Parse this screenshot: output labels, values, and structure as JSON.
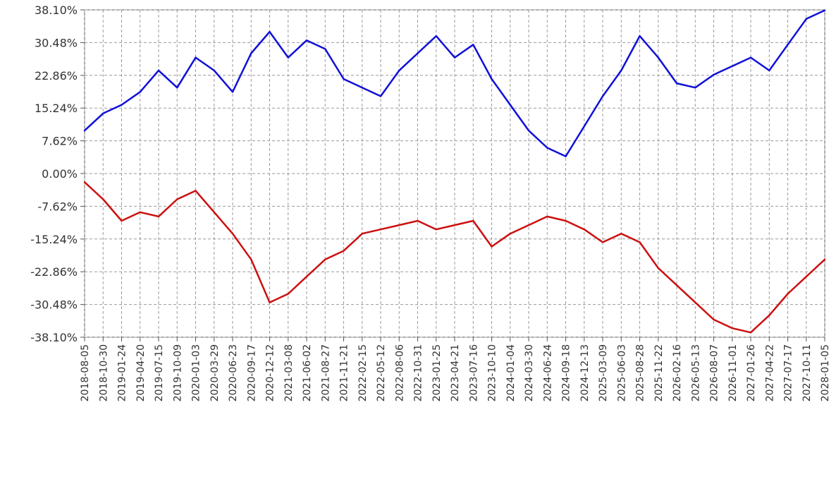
{
  "chart_data": {
    "type": "line",
    "title": "",
    "xlabel": "",
    "ylabel": "",
    "grid": true,
    "ylim": [
      -38.1,
      38.1
    ],
    "y_ticks": [
      "38.10%",
      "30.48%",
      "22.86%",
      "15.24%",
      "7.62%",
      "0.00%",
      "-7.62%",
      "-15.24%",
      "-22.86%",
      "-30.48%",
      "-38.10%"
    ],
    "y_tick_values": [
      38.1,
      30.48,
      22.86,
      15.24,
      7.62,
      0.0,
      -7.62,
      -15.24,
      -22.86,
      -30.48,
      -38.1
    ],
    "x_ticks": [
      "2018-08-05",
      "2018-10-30",
      "2019-01-24",
      "2019-04-20",
      "2019-07-15",
      "2019-10-09",
      "2020-01-03",
      "2020-03-29",
      "2020-06-23",
      "2020-09-17",
      "2020-12-12",
      "2021-03-08",
      "2021-06-02",
      "2021-08-27",
      "2021-11-21",
      "2022-02-15",
      "2022-05-12",
      "2022-08-06",
      "2022-10-31",
      "2023-01-25",
      "2023-04-21",
      "2023-07-16",
      "2023-10-10",
      "2024-01-04",
      "2024-03-30",
      "2024-06-24",
      "2024-09-18",
      "2024-12-13",
      "2025-03-09",
      "2025-06-03",
      "2025-08-28",
      "2025-11-22",
      "2026-02-16",
      "2026-05-13",
      "2026-08-07",
      "2026-11-01",
      "2027-01-26",
      "2027-04-22",
      "2027-07-17",
      "2027-10-11",
      "2028-01-05"
    ],
    "series": [
      {
        "color": "#1010d8",
        "x": [
          0,
          3,
          6,
          9,
          12,
          15,
          18,
          21,
          24,
          27,
          30,
          33,
          36,
          39,
          42,
          45,
          48,
          51,
          54,
          57,
          60,
          63,
          66,
          69,
          72,
          75,
          78,
          81,
          84,
          87,
          90,
          93,
          96,
          99,
          102,
          105,
          108,
          111,
          114,
          117,
          120
        ],
        "values": [
          10,
          14,
          16,
          19,
          24,
          20,
          27,
          24,
          19,
          28,
          33,
          27,
          31,
          29,
          22,
          20,
          18,
          24,
          28,
          32,
          27,
          30,
          22,
          16,
          10,
          6,
          4,
          11,
          18,
          24,
          32,
          27,
          21,
          20,
          23,
          25,
          27,
          24,
          30,
          36,
          38
        ]
      },
      {
        "color": "#cc1010",
        "x": [
          0,
          3,
          6,
          9,
          12,
          15,
          18,
          21,
          24,
          27,
          30,
          33,
          36,
          39,
          42,
          45,
          48,
          51,
          54,
          57,
          60,
          63,
          66,
          69,
          72,
          75,
          78,
          81,
          84,
          87,
          90,
          93,
          96,
          99,
          102,
          105,
          108,
          111,
          114,
          117,
          120
        ],
        "values": [
          -2,
          -6,
          -11,
          -9,
          -10,
          -6,
          -4,
          -9,
          -14,
          -20,
          -30,
          -28,
          -24,
          -20,
          -18,
          -14,
          -13,
          -12,
          -11,
          -13,
          -12,
          -11,
          -17,
          -14,
          -12,
          -10,
          -11,
          -13,
          -16,
          -14,
          -16,
          -22,
          -26,
          -30,
          -34,
          -36,
          -37,
          -33,
          -28,
          -24,
          -20
        ]
      }
    ]
  }
}
